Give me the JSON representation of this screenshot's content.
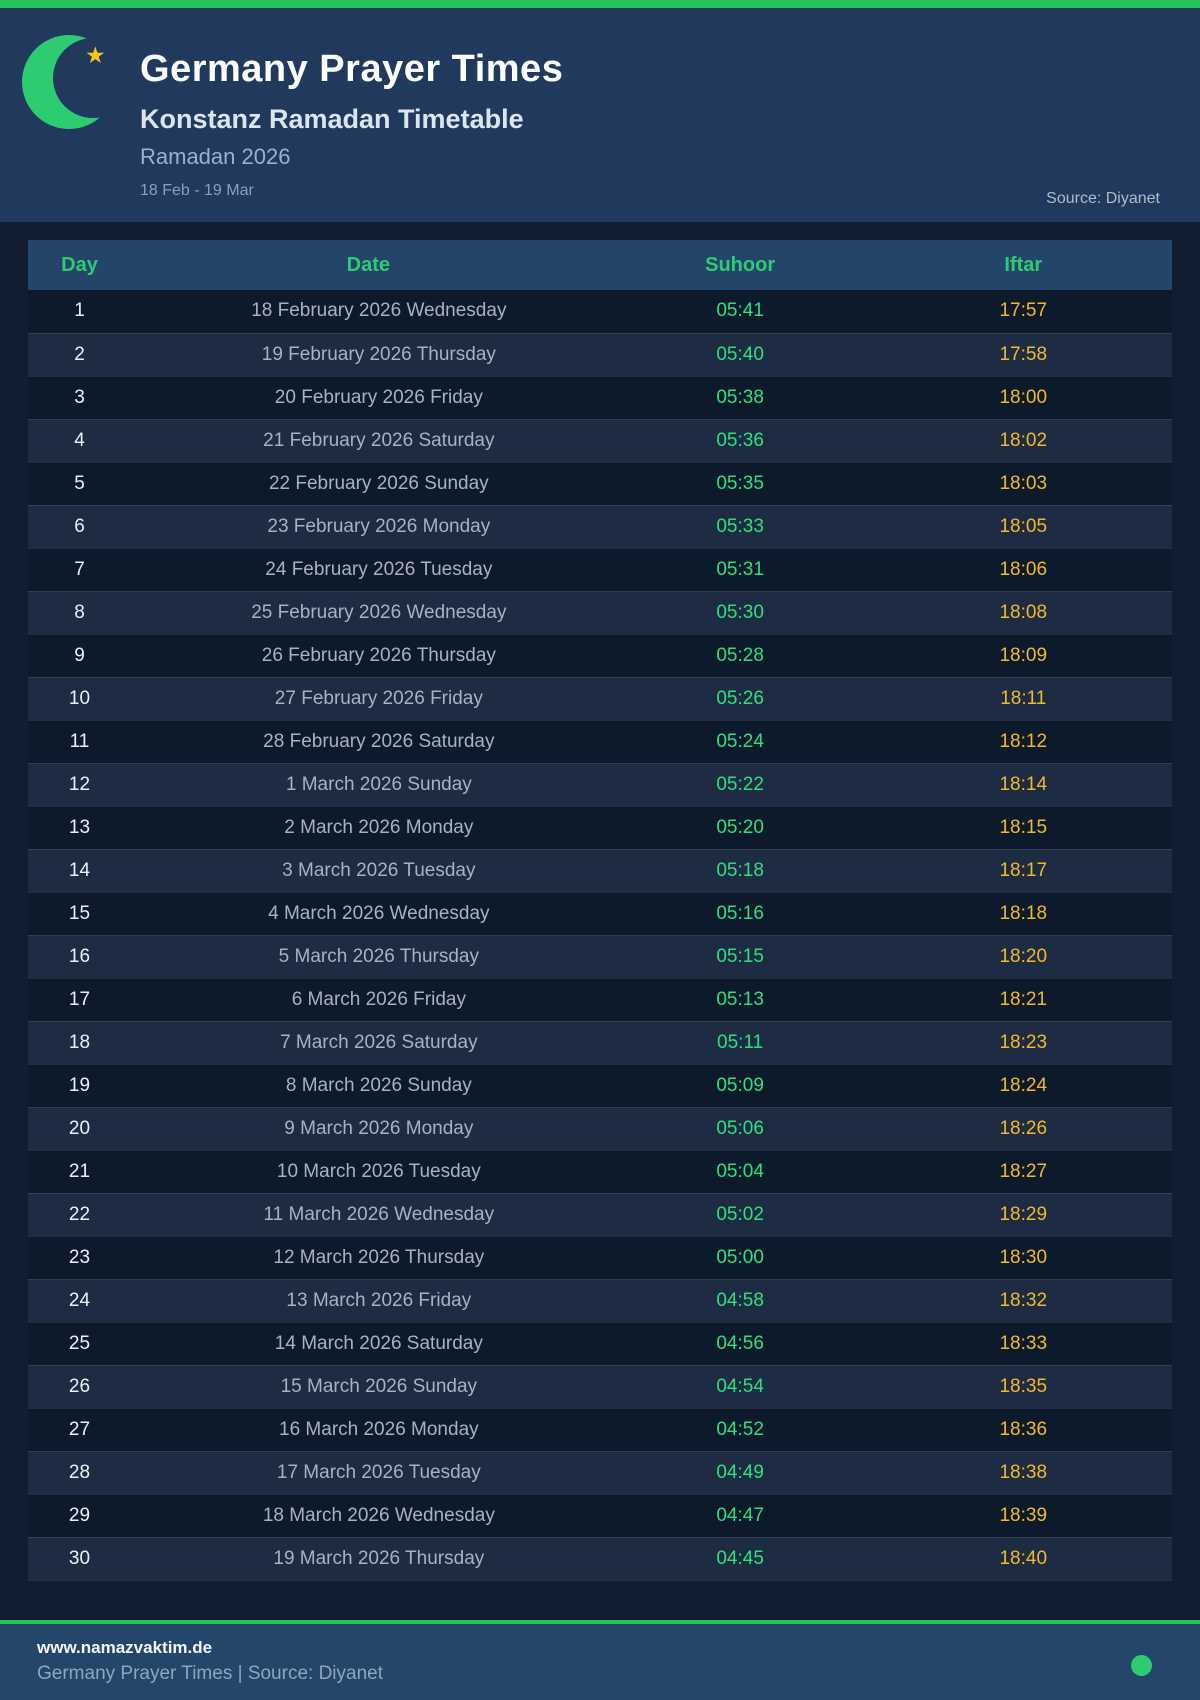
{
  "colors": {
    "accent_green": "#2ecc71",
    "topbar_green": "#24c35c",
    "suhoor_green": "#2ee07d",
    "iftar_yellow": "#f2b929",
    "header_navy": "#21395c",
    "page_navy": "#111e31",
    "thead_blue": "#234569",
    "footer_blue": "#24466b",
    "star_gold": "#f5c518"
  },
  "header": {
    "title": "Germany Prayer Times",
    "subtitle": "Konstanz Ramadan Timetable",
    "season": "Ramadan 2026",
    "date_range": "18 Feb - 19 Mar",
    "source": "Source: Diyanet",
    "star_glyph": "★"
  },
  "table": {
    "columns": {
      "day": "Day",
      "date": "Date",
      "suhoor": "Suhoor",
      "iftar": "Iftar"
    },
    "rows": [
      {
        "day": "1",
        "date": "18 February 2026 Wednesday",
        "suhoor": "05:41",
        "iftar": "17:57"
      },
      {
        "day": "2",
        "date": "19 February 2026 Thursday",
        "suhoor": "05:40",
        "iftar": "17:58"
      },
      {
        "day": "3",
        "date": "20 February 2026 Friday",
        "suhoor": "05:38",
        "iftar": "18:00"
      },
      {
        "day": "4",
        "date": "21 February 2026 Saturday",
        "suhoor": "05:36",
        "iftar": "18:02"
      },
      {
        "day": "5",
        "date": "22 February 2026 Sunday",
        "suhoor": "05:35",
        "iftar": "18:03"
      },
      {
        "day": "6",
        "date": "23 February 2026 Monday",
        "suhoor": "05:33",
        "iftar": "18:05"
      },
      {
        "day": "7",
        "date": "24 February 2026 Tuesday",
        "suhoor": "05:31",
        "iftar": "18:06"
      },
      {
        "day": "8",
        "date": "25 February 2026 Wednesday",
        "suhoor": "05:30",
        "iftar": "18:08"
      },
      {
        "day": "9",
        "date": "26 February 2026 Thursday",
        "suhoor": "05:28",
        "iftar": "18:09"
      },
      {
        "day": "10",
        "date": "27 February 2026 Friday",
        "suhoor": "05:26",
        "iftar": "18:11"
      },
      {
        "day": "11",
        "date": "28 February 2026 Saturday",
        "suhoor": "05:24",
        "iftar": "18:12"
      },
      {
        "day": "12",
        "date": "1 March 2026 Sunday",
        "suhoor": "05:22",
        "iftar": "18:14"
      },
      {
        "day": "13",
        "date": "2 March 2026 Monday",
        "suhoor": "05:20",
        "iftar": "18:15"
      },
      {
        "day": "14",
        "date": "3 March 2026 Tuesday",
        "suhoor": "05:18",
        "iftar": "18:17"
      },
      {
        "day": "15",
        "date": "4 March 2026 Wednesday",
        "suhoor": "05:16",
        "iftar": "18:18"
      },
      {
        "day": "16",
        "date": "5 March 2026 Thursday",
        "suhoor": "05:15",
        "iftar": "18:20"
      },
      {
        "day": "17",
        "date": "6 March 2026 Friday",
        "suhoor": "05:13",
        "iftar": "18:21"
      },
      {
        "day": "18",
        "date": "7 March 2026 Saturday",
        "suhoor": "05:11",
        "iftar": "18:23"
      },
      {
        "day": "19",
        "date": "8 March 2026 Sunday",
        "suhoor": "05:09",
        "iftar": "18:24"
      },
      {
        "day": "20",
        "date": "9 March 2026 Monday",
        "suhoor": "05:06",
        "iftar": "18:26"
      },
      {
        "day": "21",
        "date": "10 March 2026 Tuesday",
        "suhoor": "05:04",
        "iftar": "18:27"
      },
      {
        "day": "22",
        "date": "11 March 2026 Wednesday",
        "suhoor": "05:02",
        "iftar": "18:29"
      },
      {
        "day": "23",
        "date": "12 March 2026 Thursday",
        "suhoor": "05:00",
        "iftar": "18:30"
      },
      {
        "day": "24",
        "date": "13 March 2026 Friday",
        "suhoor": "04:58",
        "iftar": "18:32"
      },
      {
        "day": "25",
        "date": "14 March 2026 Saturday",
        "suhoor": "04:56",
        "iftar": "18:33"
      },
      {
        "day": "26",
        "date": "15 March 2026 Sunday",
        "suhoor": "04:54",
        "iftar": "18:35"
      },
      {
        "day": "27",
        "date": "16 March 2026 Monday",
        "suhoor": "04:52",
        "iftar": "18:36"
      },
      {
        "day": "28",
        "date": "17 March 2026 Tuesday",
        "suhoor": "04:49",
        "iftar": "18:38"
      },
      {
        "day": "29",
        "date": "18 March 2026 Wednesday",
        "suhoor": "04:47",
        "iftar": "18:39"
      },
      {
        "day": "30",
        "date": "19 March 2026 Thursday",
        "suhoor": "04:45",
        "iftar": "18:40"
      }
    ]
  },
  "footer": {
    "website": "www.namazvaktim.de",
    "tagline": "Germany Prayer Times | Source: Diyanet"
  }
}
